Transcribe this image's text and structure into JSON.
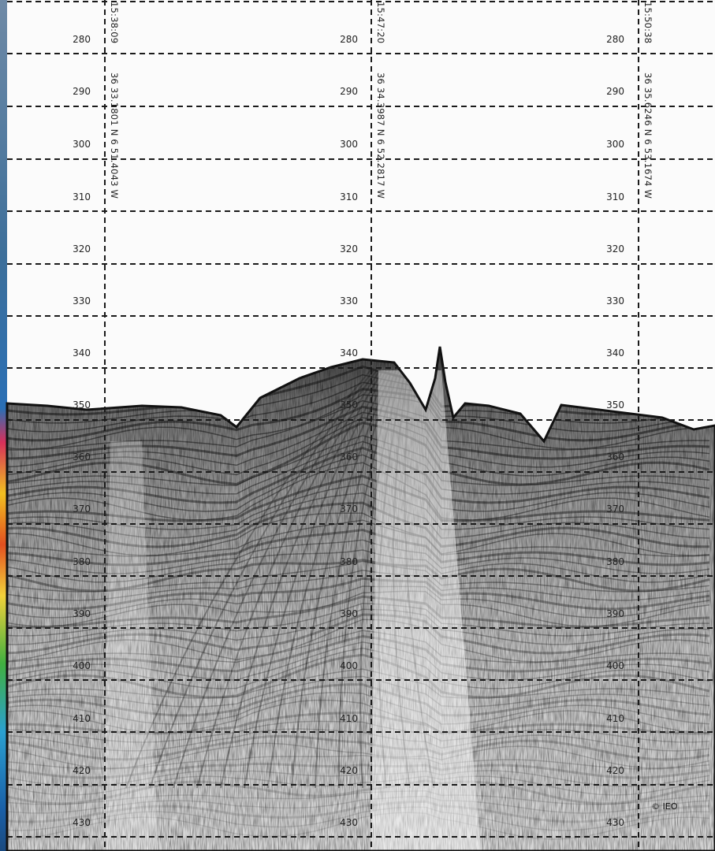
{
  "depth_marks": [
    "280",
    "290",
    "300",
    "310",
    "320",
    "330",
    "340",
    "350",
    "360",
    "370",
    "380",
    "390",
    "400",
    "410",
    "420",
    "430"
  ],
  "fixes": [
    {
      "time": "15:38:09",
      "position": "36 33.1801 N 6 51.4043 W"
    },
    {
      "time": "15:47:20",
      "position": "36 34.3987 N 6 52.2817 W"
    },
    {
      "time": "15:50:38",
      "position": "36 35.6246 N 6 53.1674 W"
    }
  ],
  "credit": "© IEO"
}
